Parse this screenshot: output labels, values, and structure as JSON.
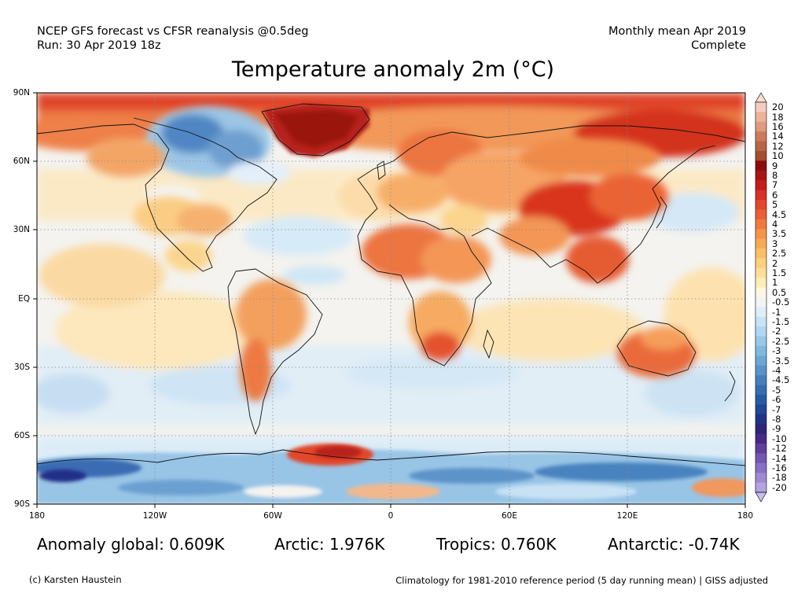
{
  "header": {
    "source_line1": "NCEP GFS forecast vs CFSR reanalysis @0.5deg",
    "source_line2": "Run: 30 Apr 2019 18z",
    "period_line1": "Monthly mean Apr 2019",
    "period_line2": "Complete"
  },
  "title": "Temperature anomaly 2m (°C)",
  "axes": {
    "lat_labels": [
      "90N",
      "60N",
      "30N",
      "EQ",
      "30S",
      "60S",
      "90S"
    ],
    "lon_labels": [
      "180",
      "120W",
      "60W",
      "0",
      "60E",
      "120E",
      "180"
    ]
  },
  "colorbar": {
    "levels": [
      "20",
      "18",
      "16",
      "14",
      "12",
      "10",
      "9",
      "8",
      "7",
      "6",
      "5",
      "4.5",
      "4",
      "3.5",
      "3",
      "2.5",
      "2",
      "1.5",
      "1",
      "0.5",
      "-0.5",
      "-1",
      "-1.5",
      "-2",
      "-2.5",
      "-3",
      "-3.5",
      "-4",
      "-4.5",
      "-5",
      "-6",
      "-7",
      "-8",
      "-9",
      "-10",
      "-12",
      "-14",
      "-16",
      "-18",
      "-20"
    ],
    "colors": [
      "#f4cdbe",
      "#ebb39c",
      "#e09a80",
      "#cd7a5c",
      "#b86447",
      "#a44d33",
      "#8c0d0d",
      "#a81414",
      "#c21d1a",
      "#d83022",
      "#e3472c",
      "#ea5f35",
      "#f07a3d",
      "#f49447",
      "#f7aa55",
      "#f9bf67",
      "#fbd27c",
      "#fde096",
      "#feedb7",
      "#fcf7e3",
      "#f3f3f3",
      "#dfeefa",
      "#c8e3f6",
      "#b0d6f0",
      "#98c7e8",
      "#80b8df",
      "#6ca6d5",
      "#5893c9",
      "#4680bc",
      "#366daf",
      "#285aa3",
      "#1f4796",
      "#1f3487",
      "#2e2478",
      "#472a88",
      "#5d3f9c",
      "#7257b0",
      "#8870c3",
      "#9d8ad3",
      "#b3a3e1"
    ],
    "top_tip_color": "#f7dccf",
    "bottom_tip_color": "#c7bcec"
  },
  "stats": {
    "global": "Anomaly global: 0.609K",
    "arctic": "Arctic: 1.976K",
    "tropics": "Tropics: 0.760K",
    "antarctic": "Antarctic: -0.74K"
  },
  "footer": {
    "credit": "(c) Karsten Haustein",
    "note": "Climatology for 1981-2010 reference period (5 day running mean) | GISS adjusted"
  }
}
